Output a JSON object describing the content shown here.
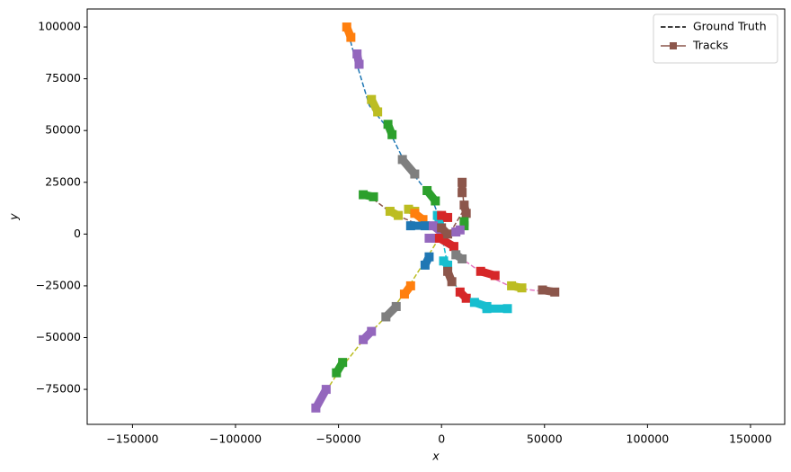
{
  "chart_data": {
    "type": "line",
    "xlabel": "x",
    "ylabel": "y",
    "xlim": [
      -172000,
      166600
    ],
    "ylim": [
      -91900,
      108700
    ],
    "xticks": [
      {
        "value": -150000,
        "label": "−150000"
      },
      {
        "value": -100000,
        "label": "−100000"
      },
      {
        "value": -50000,
        "label": "−50000"
      },
      0,
      50000,
      100000,
      150000
    ],
    "yticks": [
      {
        "value": -75000,
        "label": "−75000"
      },
      {
        "value": -50000,
        "label": "−50000"
      },
      {
        "value": -25000,
        "label": "−25000"
      },
      0,
      25000,
      50000,
      75000,
      100000
    ],
    "grid": false,
    "legend": {
      "corner": "upper right",
      "entries": [
        {
          "name": "Ground Truth",
          "color": "#000000",
          "style": "dashed"
        },
        {
          "name": "Tracks",
          "color": "#8c564b",
          "style": "solid",
          "marker": "square"
        }
      ]
    },
    "ground_truth": [
      {
        "color": "#1f77b4",
        "x": [
          -46000,
          -42000,
          -35000,
          -26000,
          -17000,
          -5000,
          0
        ],
        "y": [
          100000,
          85000,
          62000,
          51000,
          33000,
          18000,
          5000
        ]
      },
      {
        "color": "#bcbd22",
        "x": [
          -60000,
          -49000,
          -37000,
          -25000,
          -17000,
          -8000,
          0
        ],
        "y": [
          -82000,
          -65000,
          -50000,
          -38000,
          -27000,
          -13000,
          0
        ]
      },
      {
        "color": "#e377c2",
        "x": [
          0,
          10000,
          20000,
          35000,
          52000
        ],
        "y": [
          0,
          -12000,
          -19000,
          -26000,
          -28000
        ]
      },
      {
        "color": "#8c564b",
        "x": [
          -36000,
          -24000,
          -12000,
          0
        ],
        "y": [
          19000,
          10000,
          5000,
          2000
        ]
      },
      {
        "color": "#8c564b",
        "x": [
          0,
          5000,
          11000,
          10000
        ],
        "y": [
          0,
          2000,
          12000,
          24000
        ]
      },
      {
        "color": "#17becf",
        "x": [
          0,
          4000,
          10000,
          25000,
          31000
        ],
        "y": [
          0,
          -20000,
          -30000,
          -35000,
          -35500
        ]
      }
    ],
    "tracks": [
      {
        "color": "#ff7f0e",
        "x": [
          -46000,
          -44000
        ],
        "y": [
          100000,
          95000
        ]
      },
      {
        "color": "#9467bd",
        "x": [
          -41000,
          -40000
        ],
        "y": [
          87000,
          82000
        ]
      },
      {
        "color": "#bcbd22",
        "x": [
          -34000,
          -31000
        ],
        "y": [
          65000,
          59000
        ]
      },
      {
        "color": "#2ca02c",
        "x": [
          -26000,
          -24000
        ],
        "y": [
          53000,
          48000
        ]
      },
      {
        "color": "#7f7f7f",
        "x": [
          -19000,
          -13000
        ],
        "y": [
          36000,
          29000
        ]
      },
      {
        "color": "#2ca02c",
        "x": [
          -7000,
          -3000
        ],
        "y": [
          21000,
          16000
        ]
      },
      {
        "color": "#8c564b",
        "x": [
          10000,
          10000
        ],
        "y": [
          25000,
          20000
        ]
      },
      {
        "color": "#8c564b",
        "x": [
          11000,
          12000
        ],
        "y": [
          14000,
          10000
        ]
      },
      {
        "color": "#2ca02c",
        "x": [
          11000,
          11000
        ],
        "y": [
          6000,
          4000
        ]
      },
      {
        "color": "#2ca02c",
        "x": [
          -38000,
          -33000
        ],
        "y": [
          19000,
          18000
        ]
      },
      {
        "color": "#bcbd22",
        "x": [
          -25000,
          -21000
        ],
        "y": [
          11000,
          9000
        ]
      },
      {
        "color": "#bcbd22",
        "x": [
          -16000,
          -13000
        ],
        "y": [
          12000,
          11000
        ]
      },
      {
        "color": "#ff7f0e",
        "x": [
          -13000,
          -9000
        ],
        "y": [
          10000,
          7000
        ]
      },
      {
        "color": "#1f77b4",
        "x": [
          -15000,
          -8000
        ],
        "y": [
          4000,
          4000
        ]
      },
      {
        "color": "#17becf",
        "x": [
          -2000,
          -1000
        ],
        "y": [
          9000,
          5000
        ]
      },
      {
        "color": "#d62728",
        "x": [
          0,
          3000
        ],
        "y": [
          9000,
          8000
        ]
      },
      {
        "color": "#9467bd",
        "x": [
          -4000,
          1000
        ],
        "y": [
          4000,
          0
        ]
      },
      {
        "color": "#9467bd",
        "x": [
          -6000,
          -3000
        ],
        "y": [
          -2000,
          -2000
        ]
      },
      {
        "color": "#d62728",
        "x": [
          -1000,
          6000
        ],
        "y": [
          -2000,
          -6000
        ]
      },
      {
        "color": "#8c564b",
        "x": [
          0,
          3000
        ],
        "y": [
          3000,
          0
        ]
      },
      {
        "color": "#7f7f7f",
        "x": [
          7000,
          10000
        ],
        "y": [
          -10000,
          -12000
        ]
      },
      {
        "color": "#9467bd",
        "x": [
          7000,
          9000
        ],
        "y": [
          1000,
          2000
        ]
      },
      {
        "color": "#17becf",
        "x": [
          1000,
          3000
        ],
        "y": [
          -13000,
          -15000
        ]
      },
      {
        "color": "#8c564b",
        "x": [
          3000,
          5000
        ],
        "y": [
          -18000,
          -23000
        ]
      },
      {
        "color": "#d62728",
        "x": [
          9000,
          12000
        ],
        "y": [
          -28000,
          -31000
        ]
      },
      {
        "color": "#17becf",
        "x": [
          16000,
          22000
        ],
        "y": [
          -33000,
          -35000
        ]
      },
      {
        "color": "#17becf",
        "x": [
          22000,
          32000
        ],
        "y": [
          -36000,
          -36000
        ]
      },
      {
        "color": "#d62728",
        "x": [
          19000,
          26000
        ],
        "y": [
          -18000,
          -20000
        ]
      },
      {
        "color": "#bcbd22",
        "x": [
          34000,
          39000
        ],
        "y": [
          -25000,
          -26000
        ]
      },
      {
        "color": "#8c564b",
        "x": [
          49000,
          55000
        ],
        "y": [
          -27000,
          -28000
        ]
      },
      {
        "color": "#1f77b4",
        "x": [
          -8000,
          -6000
        ],
        "y": [
          -15000,
          -11000
        ]
      },
      {
        "color": "#ff7f0e",
        "x": [
          -18000,
          -15000
        ],
        "y": [
          -29000,
          -25000
        ]
      },
      {
        "color": "#7f7f7f",
        "x": [
          -27000,
          -22000
        ],
        "y": [
          -40000,
          -35000
        ]
      },
      {
        "color": "#9467bd",
        "x": [
          -38000,
          -34000
        ],
        "y": [
          -51000,
          -47000
        ]
      },
      {
        "color": "#2ca02c",
        "x": [
          -51000,
          -48000
        ],
        "y": [
          -67000,
          -62000
        ]
      },
      {
        "color": "#9467bd",
        "x": [
          -61000,
          -56000
        ],
        "y": [
          -84000,
          -75000
        ]
      }
    ]
  }
}
